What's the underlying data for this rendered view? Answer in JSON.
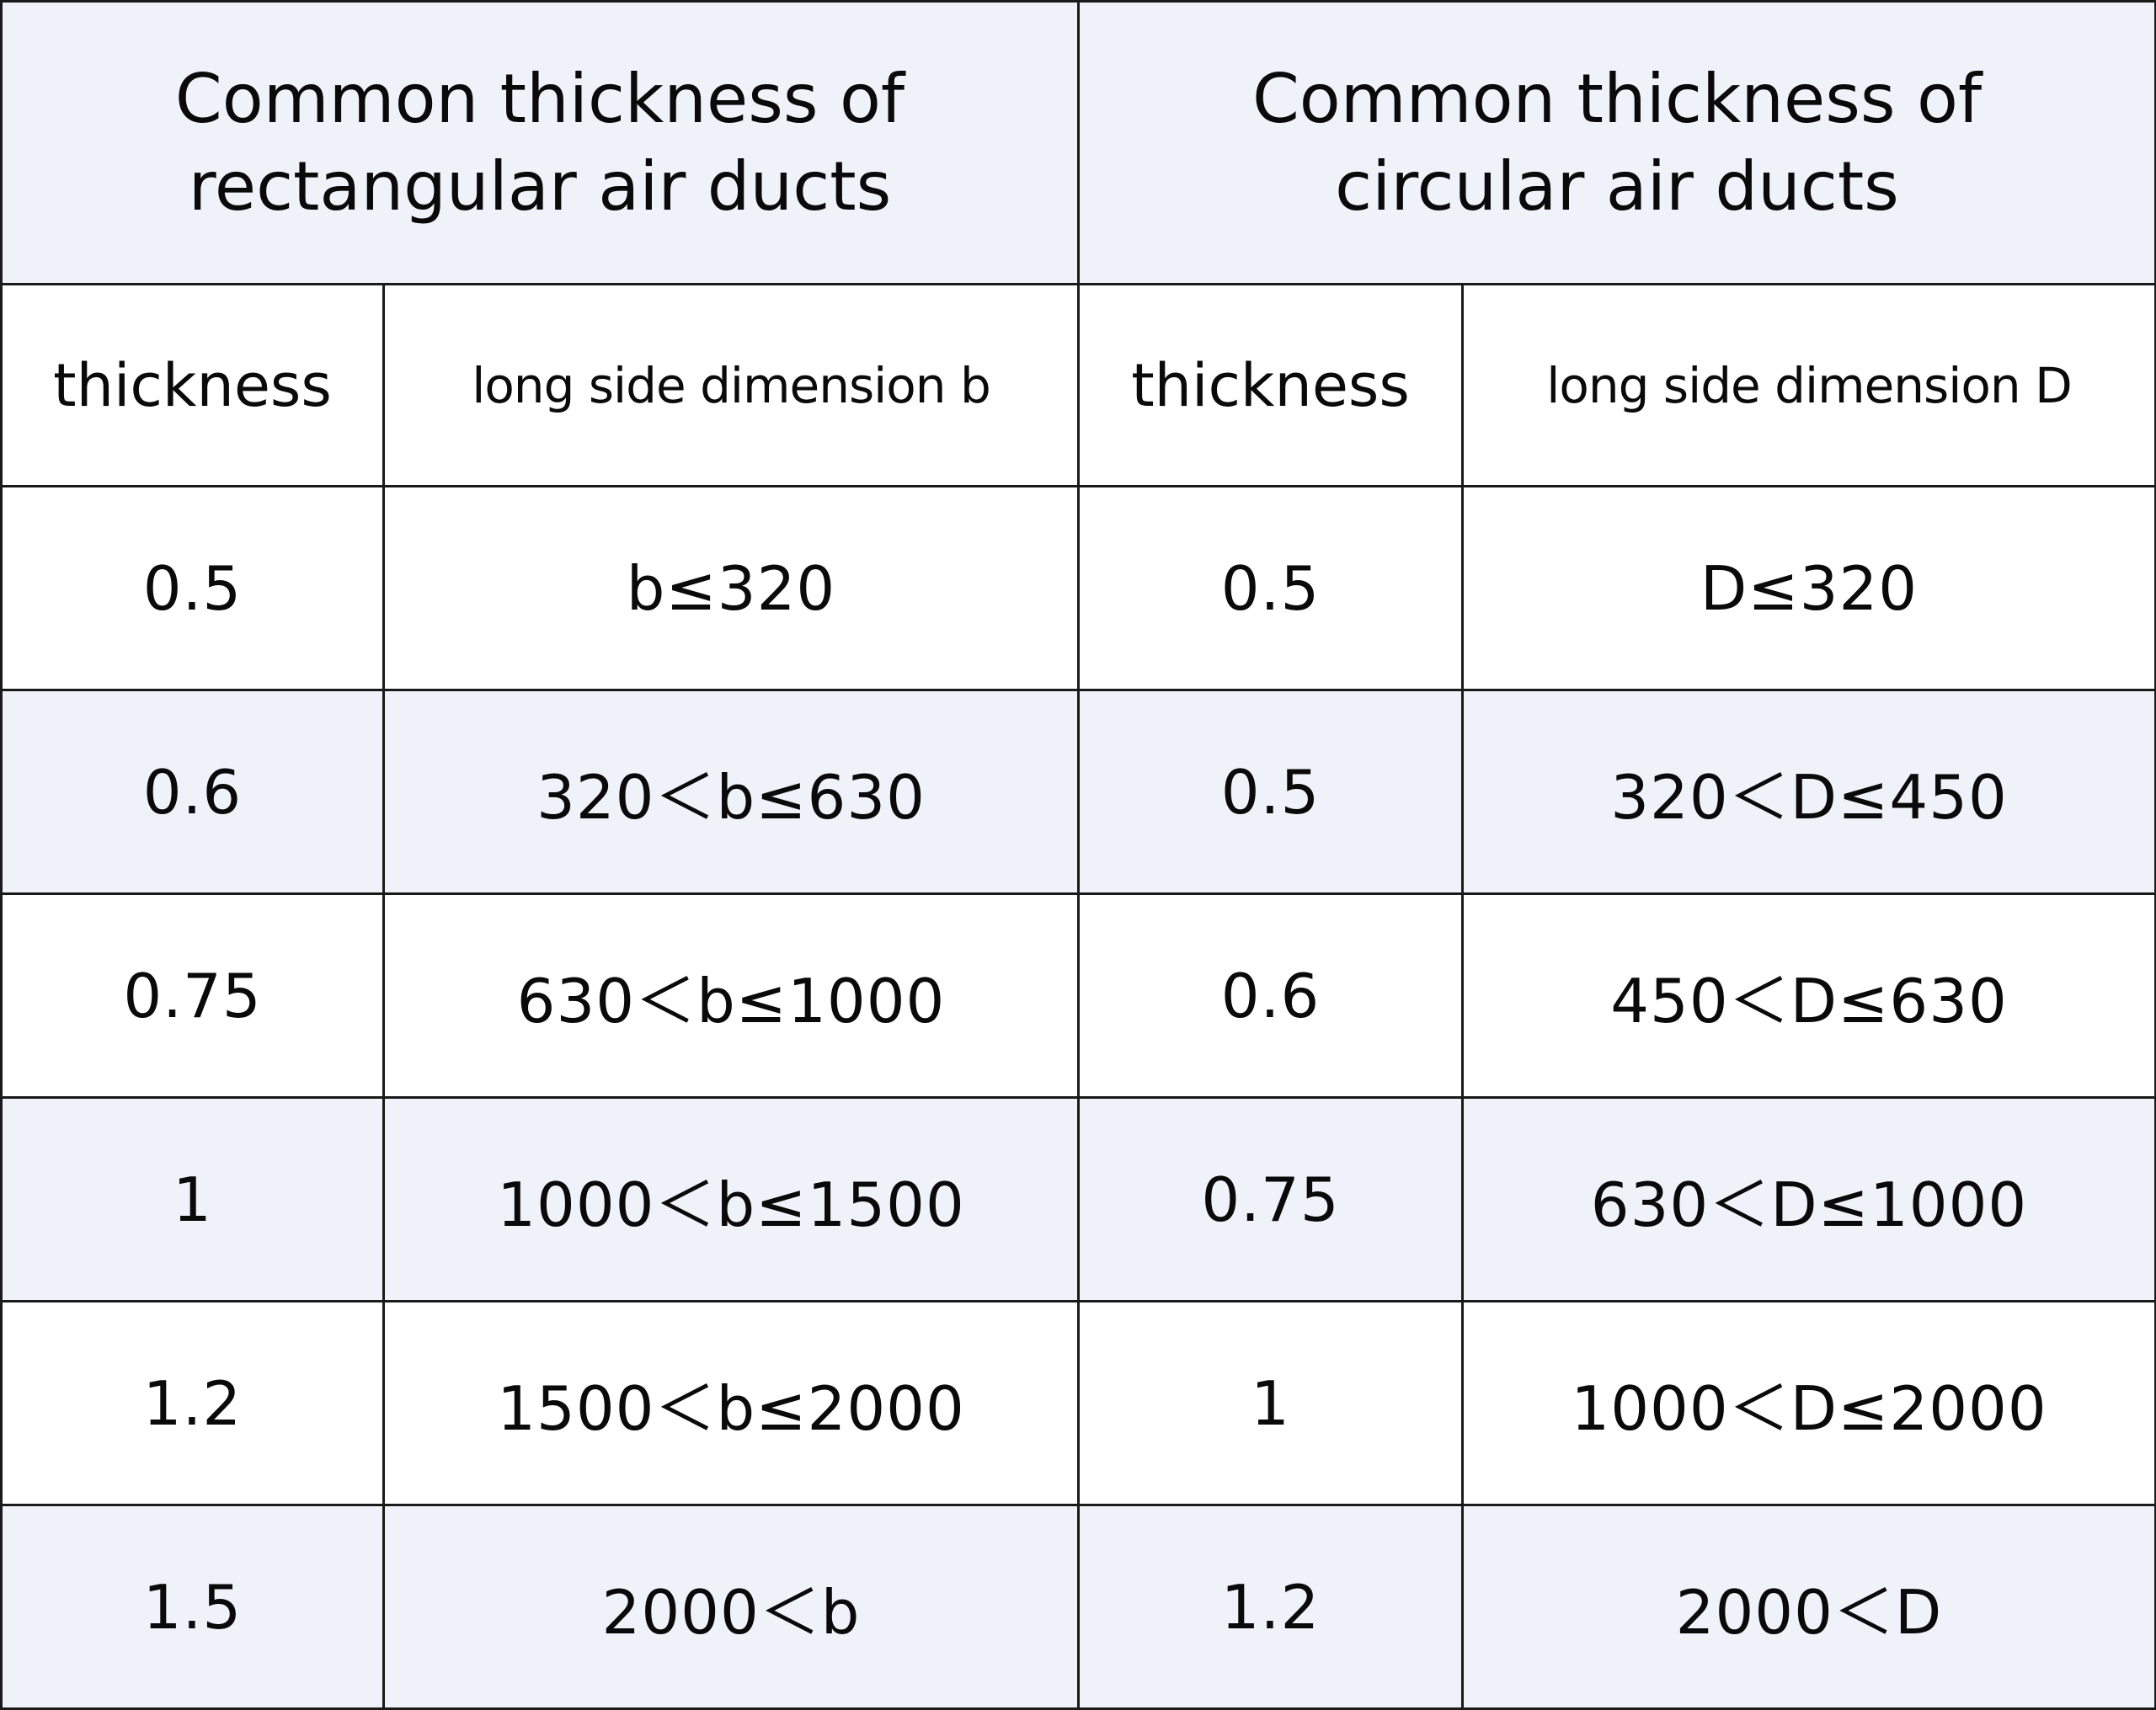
{
  "table": {
    "header": {
      "rect_title_line1": "Common thickness of",
      "rect_title_line2": "rectangular air ducts",
      "circ_title_line1": "Common thickness of",
      "circ_title_line2": "circular air ducts"
    },
    "subheader": {
      "rect_thickness": "thickness",
      "rect_dimension": "long side dimension b",
      "circ_thickness": "thickness",
      "circ_dimension": "long side dimension D"
    },
    "rows": [
      {
        "rect_thickness": "0.5",
        "rect_range": "b≤320",
        "circ_thickness": "0.5",
        "circ_range": "D≤320"
      },
      {
        "rect_thickness": "0.6",
        "rect_range": "320＜b≤630",
        "circ_thickness": "0.5",
        "circ_range": "320＜D≤450"
      },
      {
        "rect_thickness": "0.75",
        "rect_range": "630＜b≤1000",
        "circ_thickness": "0.6",
        "circ_range": "450＜D≤630"
      },
      {
        "rect_thickness": "1",
        "rect_range": "1000＜b≤1500",
        "circ_thickness": "0.75",
        "circ_range": "630＜D≤1000"
      },
      {
        "rect_thickness": "1.2",
        "rect_range": "1500＜b≤2000",
        "circ_thickness": "1",
        "circ_range": "1000＜D≤2000"
      },
      {
        "rect_thickness": "1.5",
        "rect_range": "2000＜b",
        "circ_thickness": "1.2",
        "circ_range": "2000＜D"
      }
    ]
  },
  "colors": {
    "shade": "#f0f2f9",
    "border": "#1a1a1a",
    "text": "#0a0a0a"
  }
}
